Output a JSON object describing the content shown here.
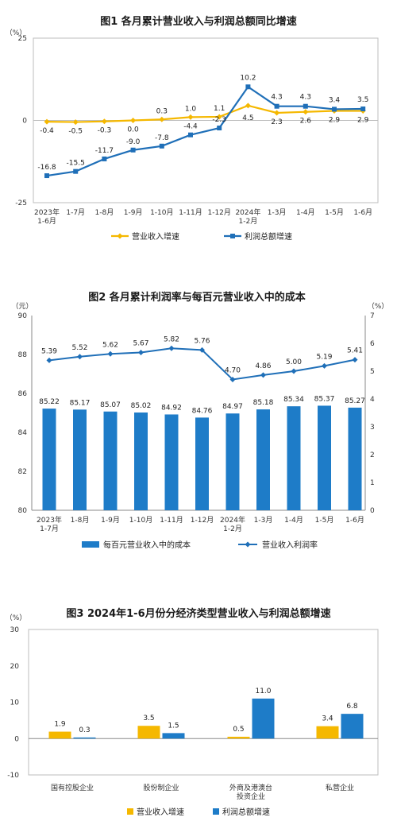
{
  "colors": {
    "yellow": "#F5B800",
    "blue": "#1F6FB8",
    "bar_blue": "#1E7CC8",
    "gray": "#7f7f7f"
  },
  "chart_data": [
    {
      "type": "line",
      "title": "图1  各月累计营业收入与利润总额同比增速",
      "ylabel": "（%）",
      "ylim": [
        -25,
        25
      ],
      "yticks": [
        "25",
        "0",
        "-25"
      ],
      "categories": [
        [
          "2023年",
          "1-6月"
        ],
        [
          "1-7月"
        ],
        [
          "1-8月"
        ],
        [
          "1-9月"
        ],
        [
          "1-10月"
        ],
        [
          "1-11月"
        ],
        [
          "1-12月"
        ],
        [
          "2024年",
          "1-2月"
        ],
        [
          "1-3月"
        ],
        [
          "1-4月"
        ],
        [
          "1-5月"
        ],
        [
          "1-6月"
        ]
      ],
      "series": [
        {
          "name": "营业收入增速",
          "values": [
            -0.4,
            -0.5,
            -0.3,
            0.0,
            0.3,
            1.0,
            1.1,
            4.5,
            2.3,
            2.6,
            2.9,
            2.9
          ],
          "labels": [
            "-0.4",
            "-0.5",
            "-0.3",
            "0.0",
            "0.3",
            "1.0",
            "1.1",
            "4.5",
            "2.3",
            "2.6",
            "2.9",
            "2.9"
          ]
        },
        {
          "name": "利润总额增速",
          "values": [
            -16.8,
            -15.5,
            -11.7,
            -9.0,
            -7.8,
            -4.4,
            -2.3,
            10.2,
            4.3,
            4.3,
            3.4,
            3.5
          ],
          "labels": [
            "-16.8",
            "-15.5",
            "-11.7",
            "-9.0",
            "-7.8",
            "-4.4",
            "-2.3",
            "10.2",
            "4.3",
            "4.3",
            "3.4",
            "3.5"
          ]
        }
      ],
      "legend": "bottom"
    },
    {
      "type": "bar",
      "title": "图2  各月累计利润率与每百元营业收入中的成本",
      "ylabel_left": "（元）",
      "ylabel_right": "（%）",
      "ylim_left": [
        80,
        90
      ],
      "ylim_right": [
        0,
        7
      ],
      "yticks_left": [
        "80",
        "82",
        "84",
        "86",
        "88",
        "90"
      ],
      "yticks_right": [
        "0",
        "1",
        "2",
        "3",
        "4",
        "5",
        "6",
        "7"
      ],
      "categories": [
        [
          "2023年",
          "1-7月"
        ],
        [
          "1-8月"
        ],
        [
          "1-9月"
        ],
        [
          "1-10月"
        ],
        [
          "1-11月"
        ],
        [
          "1-12月"
        ],
        [
          "2024年",
          "1-2月"
        ],
        [
          "1-3月"
        ],
        [
          "1-4月"
        ],
        [
          "1-5月"
        ],
        [
          "1-6月"
        ]
      ],
      "series": [
        {
          "name": "每百元营业收入中的成本",
          "axis": "left",
          "values": [
            85.22,
            85.17,
            85.07,
            85.02,
            84.92,
            84.76,
            84.97,
            85.18,
            85.34,
            85.37,
            85.27
          ],
          "labels": [
            "85.22",
            "85.17",
            "85.07",
            "85.02",
            "84.92",
            "84.76",
            "84.97",
            "85.18",
            "85.34",
            "85.37",
            "85.27"
          ]
        },
        {
          "name": "营业收入利润率",
          "axis": "right",
          "values": [
            5.39,
            5.52,
            5.62,
            5.67,
            5.82,
            5.76,
            4.7,
            4.86,
            5.0,
            5.19,
            5.41
          ],
          "labels": [
            "5.39",
            "5.52",
            "5.62",
            "5.67",
            "5.82",
            "5.76",
            "4.70",
            "4.86",
            "5.00",
            "5.19",
            "5.41"
          ]
        }
      ],
      "legend": "bottom"
    },
    {
      "type": "bar",
      "title": "图3  2024年1-6月份分经济类型营业收入与利润总额增速",
      "ylabel": "（%）",
      "ylim": [
        -10,
        30
      ],
      "yticks": [
        "-10",
        "0",
        "10",
        "20",
        "30"
      ],
      "categories": [
        [
          "国有控股企业"
        ],
        [
          "股份制企业"
        ],
        [
          "外商及港澳台",
          "投资企业"
        ],
        [
          "私营企业"
        ]
      ],
      "series": [
        {
          "name": "营业收入增速",
          "values": [
            1.9,
            3.5,
            0.5,
            3.4
          ],
          "labels": [
            "1.9",
            "3.5",
            "0.5",
            "3.4"
          ]
        },
        {
          "name": "利润总额增速",
          "values": [
            0.3,
            1.5,
            11.0,
            6.8
          ],
          "labels": [
            "0.3",
            "1.5",
            "11.0",
            "6.8"
          ]
        }
      ],
      "legend": "bottom"
    }
  ]
}
